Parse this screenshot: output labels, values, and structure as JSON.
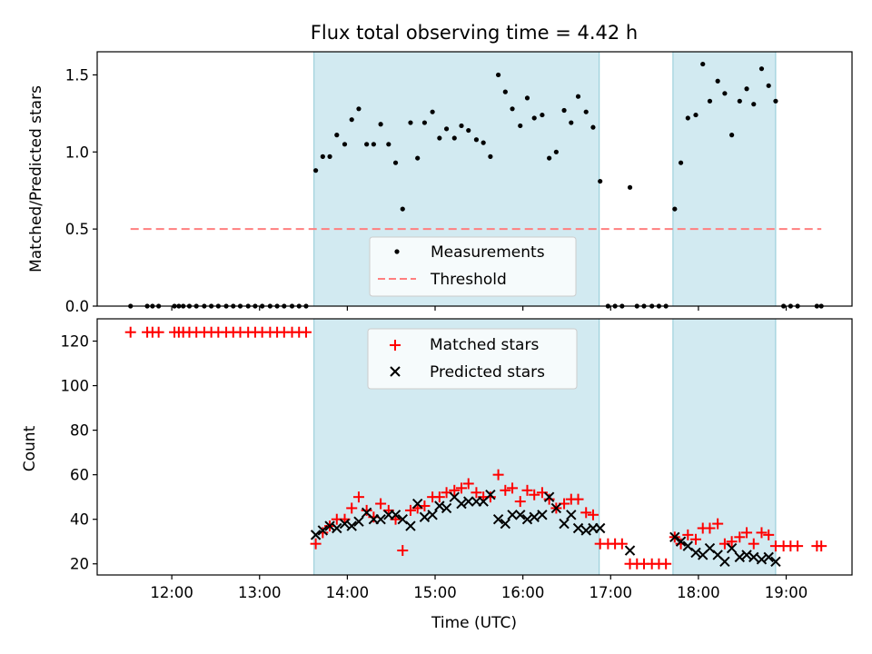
{
  "chart_data": [
    {
      "type": "scatter",
      "title": "Flux total observing time = 4.42 h",
      "ylabel": "Matched/Predicted stars",
      "xlabel": "",
      "xlim_hours": [
        11.15,
        19.75
      ],
      "ylim": [
        0,
        1.65
      ],
      "yticks": [
        "0.0",
        "0.5",
        "1.0",
        "1.5"
      ],
      "ytick_values": [
        0,
        0.5,
        1.0,
        1.5
      ],
      "shaded_intervals_hours": [
        [
          13.62,
          16.87
        ],
        [
          17.71,
          18.88
        ]
      ],
      "shade_color": "#add8e6",
      "grid": false,
      "legend_position": "lower center",
      "legend": [
        {
          "label": "Measurements",
          "marker": "dot",
          "color": "#000000"
        },
        {
          "label": "Threshold",
          "marker": "dashed-line",
          "color": "#ff7f7f"
        }
      ],
      "threshold": {
        "value": 0.5,
        "x_range_hours": [
          11.53,
          19.4
        ],
        "color": "#ff7f7f"
      },
      "series": [
        {
          "marker": "dot",
          "color": "#000000",
          "x_hours": [
            11.53,
            11.72,
            11.78,
            11.85,
            12.03,
            12.08,
            12.13,
            12.2,
            12.28,
            12.37,
            12.45,
            12.53,
            12.62,
            12.7,
            12.78,
            12.87,
            12.95,
            13.03,
            13.12,
            13.2,
            13.28,
            13.37,
            13.45,
            13.53,
            13.64,
            13.72,
            13.8,
            13.88,
            13.97,
            14.05,
            14.13,
            14.22,
            14.3,
            14.38,
            14.47,
            14.55,
            14.63,
            14.72,
            14.8,
            14.88,
            14.97,
            15.05,
            15.13,
            15.22,
            15.3,
            15.38,
            15.47,
            15.55,
            15.63,
            15.72,
            15.8,
            15.88,
            15.97,
            16.05,
            16.13,
            16.22,
            16.3,
            16.38,
            16.47,
            16.55,
            16.63,
            16.72,
            16.8,
            16.88,
            16.97,
            17.05,
            17.13,
            17.22,
            17.3,
            17.38,
            17.47,
            17.55,
            17.63,
            17.73,
            17.8,
            17.88,
            17.97,
            18.05,
            18.13,
            18.22,
            18.3,
            18.38,
            18.47,
            18.55,
            18.63,
            18.72,
            18.8,
            18.88,
            18.97,
            19.05,
            19.13,
            19.35,
            19.4
          ],
          "y": [
            0,
            0,
            0,
            0,
            0,
            0,
            0,
            0,
            0,
            0,
            0,
            0,
            0,
            0,
            0,
            0,
            0,
            0,
            0,
            0,
            0,
            0,
            0,
            0,
            0.88,
            0.97,
            0.97,
            1.11,
            1.05,
            1.21,
            1.28,
            1.05,
            1.05,
            1.18,
            1.05,
            0.93,
            0.63,
            1.19,
            0.96,
            1.19,
            1.26,
            1.09,
            1.15,
            1.09,
            1.17,
            1.14,
            1.08,
            1.06,
            0.97,
            1.5,
            1.39,
            1.28,
            1.17,
            1.35,
            1.22,
            1.24,
            0.96,
            1.0,
            1.27,
            1.19,
            1.36,
            1.26,
            1.16,
            0.81,
            0,
            0,
            0,
            0.77,
            0,
            0,
            0,
            0,
            0,
            0.63,
            0.93,
            1.22,
            1.24,
            1.57,
            1.33,
            1.46,
            1.38,
            1.11,
            1.33,
            1.41,
            1.31,
            1.54,
            1.43,
            1.33,
            0,
            0,
            0,
            0,
            0
          ]
        }
      ]
    },
    {
      "type": "scatter",
      "title": "",
      "ylabel": "Count",
      "xlabel": "Time (UTC)",
      "xlim_hours": [
        11.15,
        19.75
      ],
      "xticks": [
        "12:00",
        "13:00",
        "14:00",
        "15:00",
        "16:00",
        "17:00",
        "18:00",
        "19:00"
      ],
      "xtick_hours": [
        12,
        13,
        14,
        15,
        16,
        17,
        18,
        19
      ],
      "ylim": [
        15,
        130
      ],
      "yticks": [
        "20",
        "40",
        "60",
        "80",
        "100",
        "120"
      ],
      "ytick_values": [
        20,
        40,
        60,
        80,
        100,
        120
      ],
      "shaded_intervals_hours": [
        [
          13.62,
          16.87
        ],
        [
          17.71,
          18.88
        ]
      ],
      "shade_color": "#add8e6",
      "grid": false,
      "legend_position": "upper center",
      "legend": [
        {
          "label": "Matched stars",
          "marker": "plus",
          "color": "#ff0000"
        },
        {
          "label": "Predicted stars",
          "marker": "x",
          "color": "#000000"
        }
      ],
      "series": [
        {
          "name": "Matched stars",
          "marker": "plus",
          "color": "#ff0000",
          "x_hours": [
            11.53,
            11.72,
            11.78,
            11.85,
            12.03,
            12.08,
            12.13,
            12.2,
            12.28,
            12.37,
            12.45,
            12.53,
            12.62,
            12.7,
            12.78,
            12.87,
            12.95,
            13.03,
            13.12,
            13.2,
            13.28,
            13.37,
            13.45,
            13.53,
            13.64,
            13.72,
            13.8,
            13.88,
            13.97,
            14.05,
            14.13,
            14.22,
            14.3,
            14.38,
            14.47,
            14.55,
            14.63,
            14.72,
            14.8,
            14.88,
            14.97,
            15.05,
            15.13,
            15.22,
            15.3,
            15.38,
            15.47,
            15.55,
            15.63,
            15.72,
            15.8,
            15.88,
            15.97,
            16.05,
            16.13,
            16.22,
            16.3,
            16.38,
            16.47,
            16.55,
            16.63,
            16.72,
            16.8,
            16.88,
            16.97,
            17.05,
            17.13,
            17.22,
            17.3,
            17.38,
            17.47,
            17.55,
            17.63,
            17.73,
            17.8,
            17.88,
            17.97,
            18.05,
            18.13,
            18.22,
            18.3,
            18.38,
            18.47,
            18.55,
            18.63,
            18.72,
            18.8,
            18.88,
            18.97,
            19.05,
            19.13,
            19.35,
            19.4
          ],
          "y": [
            124,
            124,
            124,
            124,
            124,
            124,
            124,
            124,
            124,
            124,
            124,
            124,
            124,
            124,
            124,
            124,
            124,
            124,
            124,
            124,
            124,
            124,
            124,
            124,
            29,
            34,
            37,
            40,
            40,
            45,
            50,
            44,
            41,
            47,
            44,
            40,
            26,
            44,
            45,
            46,
            50,
            50,
            52,
            53,
            54,
            56,
            52,
            50,
            50,
            60,
            53,
            54,
            48,
            53,
            51,
            52,
            49,
            45,
            47,
            49,
            49,
            43,
            42,
            29,
            29,
            29,
            29,
            20,
            20,
            20,
            20,
            20,
            20,
            32,
            29,
            33,
            31,
            36,
            36,
            38,
            29,
            30,
            32,
            34,
            29,
            34,
            33,
            28,
            28,
            28,
            28,
            28,
            28
          ]
        },
        {
          "name": "Predicted stars",
          "marker": "x",
          "color": "#000000",
          "x_hours": [
            13.64,
            13.72,
            13.8,
            13.88,
            13.97,
            14.05,
            14.13,
            14.22,
            14.3,
            14.38,
            14.47,
            14.55,
            14.63,
            14.72,
            14.8,
            14.88,
            14.97,
            15.05,
            15.13,
            15.22,
            15.3,
            15.38,
            15.47,
            15.55,
            15.63,
            15.72,
            15.8,
            15.88,
            15.97,
            16.05,
            16.13,
            16.22,
            16.3,
            16.38,
            16.47,
            16.55,
            16.63,
            16.72,
            16.8,
            16.88,
            17.22,
            17.73,
            17.8,
            17.88,
            17.97,
            18.05,
            18.13,
            18.22,
            18.3,
            18.38,
            18.47,
            18.55,
            18.63,
            18.72,
            18.8,
            18.88
          ],
          "y": [
            33,
            35,
            37,
            36,
            38,
            37,
            39,
            43,
            40,
            40,
            42,
            42,
            40,
            37,
            47,
            41,
            42,
            46,
            45,
            50,
            47,
            48,
            48,
            48,
            51,
            40,
            38,
            42,
            42,
            40,
            41,
            42,
            50,
            45,
            38,
            42,
            36,
            35,
            36,
            36,
            26,
            32,
            30,
            28,
            25,
            24,
            27,
            24,
            21,
            27,
            23,
            24,
            23,
            22,
            23,
            21
          ]
        }
      ]
    }
  ]
}
